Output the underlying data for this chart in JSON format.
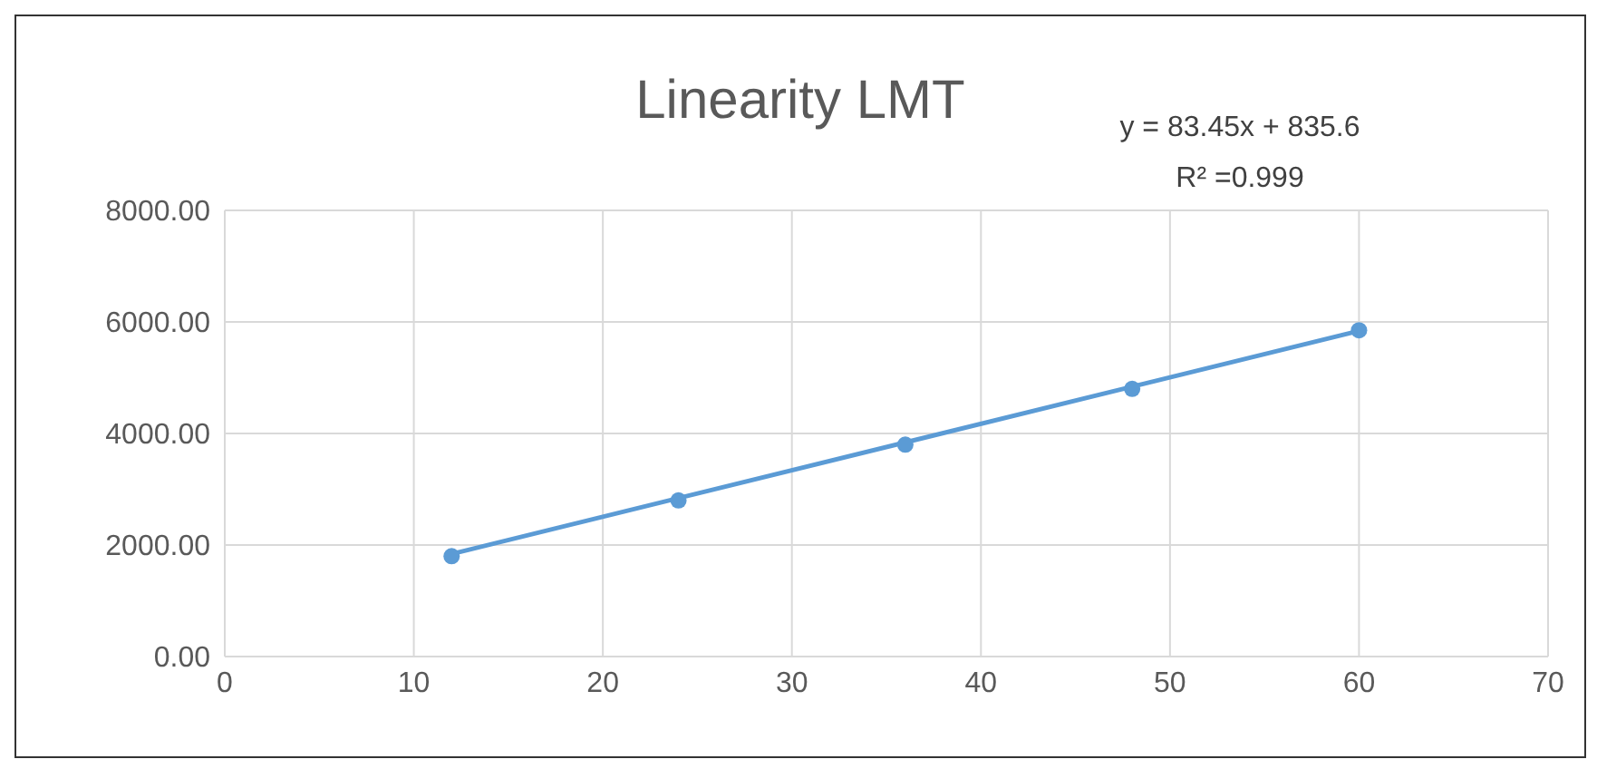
{
  "chart_data": {
    "type": "scatter",
    "title": "Linearity LMT",
    "annotations": [
      "y = 83.45x + 835.6",
      "R² =0.999"
    ],
    "series": [
      {
        "color": "#5b9bd5",
        "marker": "circle",
        "x": [
          12,
          24,
          36,
          48,
          60
        ],
        "values": [
          1800,
          2800,
          3800,
          4800,
          5850
        ]
      },
      {
        "type": "line",
        "color": "#5b9bd5",
        "marker": "none",
        "x": [
          12,
          60
        ],
        "values": [
          1840,
          5840
        ]
      }
    ],
    "xlim": [
      0,
      70
    ],
    "xticks": [
      0,
      10,
      20,
      30,
      40,
      50,
      60,
      70
    ],
    "ylim": [
      0,
      8000
    ],
    "yticks": [
      {
        "value": 0,
        "label": "0.00"
      },
      {
        "value": 2000,
        "label": "2000.00"
      },
      {
        "value": 4000,
        "label": "4000.00"
      },
      {
        "value": 6000,
        "label": "6000.00"
      },
      {
        "value": 8000,
        "label": "8000.00"
      }
    ],
    "grid": true,
    "line_style": "solid"
  }
}
